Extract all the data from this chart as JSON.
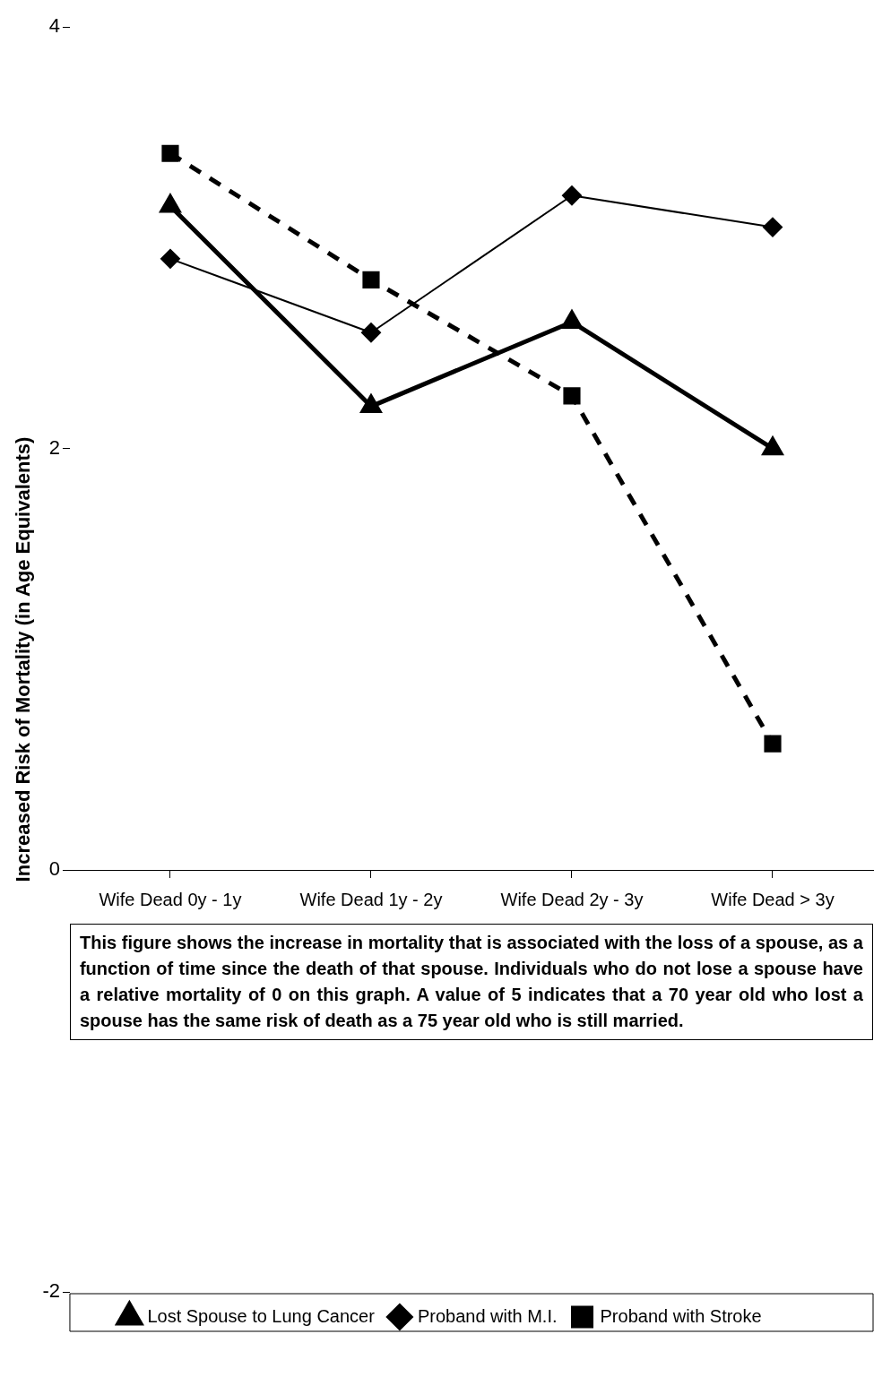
{
  "chart_data": {
    "type": "line",
    "ylabel": "Increased Risk of Mortality (in Age Equivalents)",
    "categories": [
      "Wife Dead 0y - 1y",
      "Wife Dead 1y - 2y",
      "Wife Dead 2y - 3y",
      "Wife Dead > 3y"
    ],
    "series": [
      {
        "name": "Lost Spouse to Lung Cancer",
        "color": "#000000",
        "values": [
          3.15,
          2.2,
          2.6,
          2.0
        ],
        "marker": "triangle",
        "line_style": "solid"
      },
      {
        "name": "Proband with M.I.",
        "color": "#000000",
        "values": [
          2.9,
          2.55,
          3.2,
          3.05
        ],
        "marker": "diamond",
        "line_style": "solid"
      },
      {
        "name": "Proband with Stroke",
        "color": "#000000",
        "values": [
          3.4,
          2.8,
          2.25,
          0.6
        ],
        "marker": "square",
        "line_style": "dashed"
      }
    ],
    "ylim": [
      -2,
      4
    ],
    "yticks": [
      -2,
      0,
      2,
      4
    ],
    "grid": false,
    "legend": "bottom",
    "annotations": [
      "This figure shows the increase in mortality that is associated with the loss of a spouse, as a function of time since the death of that spouse. Individuals who do not lose a spouse have a relative mortality of 0 on this graph.  A value of 5 indicates that a 70 year old who lost a spouse has the same risk of death as a 75 year old who is still married."
    ]
  }
}
